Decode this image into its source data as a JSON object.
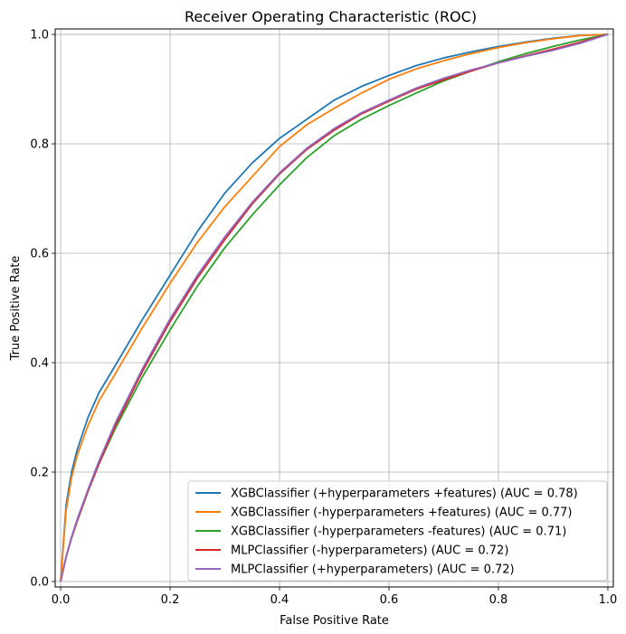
{
  "chart_data": {
    "type": "line",
    "title": "Receiver Operating Characteristic (ROC)",
    "xlabel": "False Positive Rate",
    "ylabel": "True Positive Rate",
    "xlim": [
      -0.01,
      1.01
    ],
    "ylim": [
      -0.01,
      1.01
    ],
    "grid": true,
    "legend_position": "lower-right",
    "xticks": [
      "0.0",
      "0.2",
      "0.4",
      "0.6",
      "0.8",
      "1.0"
    ],
    "yticks": [
      "0.0",
      "0.2",
      "0.4",
      "0.6",
      "0.8",
      "1.0"
    ],
    "series": [
      {
        "name": "XGBClassifier (+hyperparameters +features) (AUC = 0.78)",
        "color": "#1f77b4",
        "x": [
          0,
          0.01,
          0.02,
          0.03,
          0.05,
          0.07,
          0.1,
          0.15,
          0.2,
          0.25,
          0.3,
          0.35,
          0.4,
          0.45,
          0.5,
          0.55,
          0.6,
          0.65,
          0.7,
          0.75,
          0.8,
          0.85,
          0.9,
          0.95,
          1.0
        ],
        "y": [
          0,
          0.14,
          0.2,
          0.24,
          0.3,
          0.345,
          0.395,
          0.48,
          0.56,
          0.64,
          0.71,
          0.765,
          0.81,
          0.845,
          0.88,
          0.905,
          0.925,
          0.943,
          0.957,
          0.968,
          0.978,
          0.986,
          0.993,
          0.998,
          1.0
        ]
      },
      {
        "name": "XGBClassifier (-hyperparameters +features) (AUC = 0.77)",
        "color": "#ff7f0e",
        "x": [
          0,
          0.01,
          0.02,
          0.03,
          0.05,
          0.07,
          0.1,
          0.15,
          0.2,
          0.25,
          0.3,
          0.35,
          0.4,
          0.45,
          0.5,
          0.55,
          0.6,
          0.65,
          0.7,
          0.75,
          0.8,
          0.85,
          0.9,
          0.95,
          1.0
        ],
        "y": [
          0,
          0.13,
          0.19,
          0.23,
          0.285,
          0.33,
          0.38,
          0.465,
          0.545,
          0.62,
          0.685,
          0.74,
          0.795,
          0.835,
          0.865,
          0.893,
          0.918,
          0.937,
          0.952,
          0.965,
          0.976,
          0.985,
          0.992,
          0.998,
          1.0
        ]
      },
      {
        "name": "XGBClassifier (-hyperparameters -features) (AUC = 0.71)",
        "color": "#2ca02c",
        "x": [
          0,
          0.01,
          0.02,
          0.03,
          0.05,
          0.07,
          0.1,
          0.15,
          0.2,
          0.25,
          0.3,
          0.35,
          0.4,
          0.45,
          0.5,
          0.55,
          0.6,
          0.65,
          0.7,
          0.75,
          0.8,
          0.85,
          0.9,
          0.95,
          1.0
        ],
        "y": [
          0,
          0.045,
          0.08,
          0.11,
          0.165,
          0.215,
          0.28,
          0.375,
          0.46,
          0.54,
          0.61,
          0.67,
          0.725,
          0.775,
          0.815,
          0.845,
          0.87,
          0.893,
          0.915,
          0.933,
          0.95,
          0.965,
          0.978,
          0.99,
          1.0
        ]
      },
      {
        "name": "MLPClassifier (-hyperparameters) (AUC = 0.72)",
        "color": "#d62728",
        "x": [
          0,
          0.01,
          0.02,
          0.03,
          0.05,
          0.07,
          0.1,
          0.15,
          0.2,
          0.25,
          0.3,
          0.35,
          0.4,
          0.45,
          0.5,
          0.55,
          0.6,
          0.65,
          0.7,
          0.75,
          0.8,
          0.85,
          0.9,
          0.95,
          1.0
        ],
        "y": [
          0,
          0.045,
          0.08,
          0.11,
          0.165,
          0.215,
          0.285,
          0.385,
          0.475,
          0.555,
          0.625,
          0.69,
          0.745,
          0.79,
          0.825,
          0.855,
          0.878,
          0.9,
          0.917,
          0.933,
          0.948,
          0.961,
          0.973,
          0.986,
          1.0
        ]
      },
      {
        "name": "MLPClassifier (+hyperparameters) (AUC = 0.72)",
        "color": "#9467bd",
        "x": [
          0,
          0.01,
          0.02,
          0.03,
          0.05,
          0.07,
          0.1,
          0.15,
          0.2,
          0.25,
          0.3,
          0.35,
          0.4,
          0.45,
          0.5,
          0.55,
          0.6,
          0.65,
          0.7,
          0.75,
          0.8,
          0.85,
          0.9,
          0.95,
          1.0
        ],
        "y": [
          0,
          0.046,
          0.082,
          0.113,
          0.168,
          0.22,
          0.29,
          0.39,
          0.48,
          0.56,
          0.63,
          0.693,
          0.747,
          0.792,
          0.828,
          0.857,
          0.88,
          0.902,
          0.92,
          0.935,
          0.948,
          0.96,
          0.971,
          0.984,
          1.0
        ]
      }
    ]
  }
}
